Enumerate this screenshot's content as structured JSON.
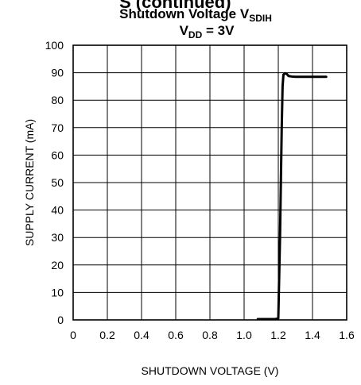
{
  "header_fragment": "S (continued)",
  "chart_data": {
    "type": "line",
    "title": {
      "line1": {
        "text": "Shutdown Voltage V",
        "sub": "SDIH"
      },
      "line2": {
        "pre": "V",
        "sub": "DD",
        "post": " = 3V"
      }
    },
    "xlabel": "SHUTDOWN VOLTAGE (V)",
    "ylabel": "SUPPLY CURRENT (mA)",
    "xlim": [
      0,
      1.6
    ],
    "ylim": [
      0,
      100
    ],
    "xticks": [
      0,
      0.2,
      0.4,
      0.6,
      0.8,
      1.0,
      1.2,
      1.4,
      1.6
    ],
    "xtick_labels": [
      "0",
      "0.2",
      "0.4",
      "0.6",
      "0.8",
      "1.0",
      "1.2",
      "1.4",
      "1.6"
    ],
    "yticks": [
      0,
      10,
      20,
      30,
      40,
      50,
      60,
      70,
      80,
      90,
      100
    ],
    "ytick_labels": [
      "0",
      "10",
      "20",
      "30",
      "40",
      "50",
      "60",
      "70",
      "80",
      "90",
      "100"
    ],
    "grid": true,
    "series": [
      {
        "x": [
          1.08,
          1.18,
          1.2,
          1.21,
          1.22,
          1.225,
          1.23,
          1.24,
          1.25,
          1.26,
          1.28,
          1.3,
          1.35,
          1.4,
          1.45,
          1.48
        ],
        "y": [
          0.3,
          0.3,
          0.5,
          30,
          70,
          85,
          89.3,
          89.8,
          89.5,
          88.8,
          88.6,
          88.5,
          88.5,
          88.5,
          88.5,
          88.5
        ]
      }
    ]
  }
}
